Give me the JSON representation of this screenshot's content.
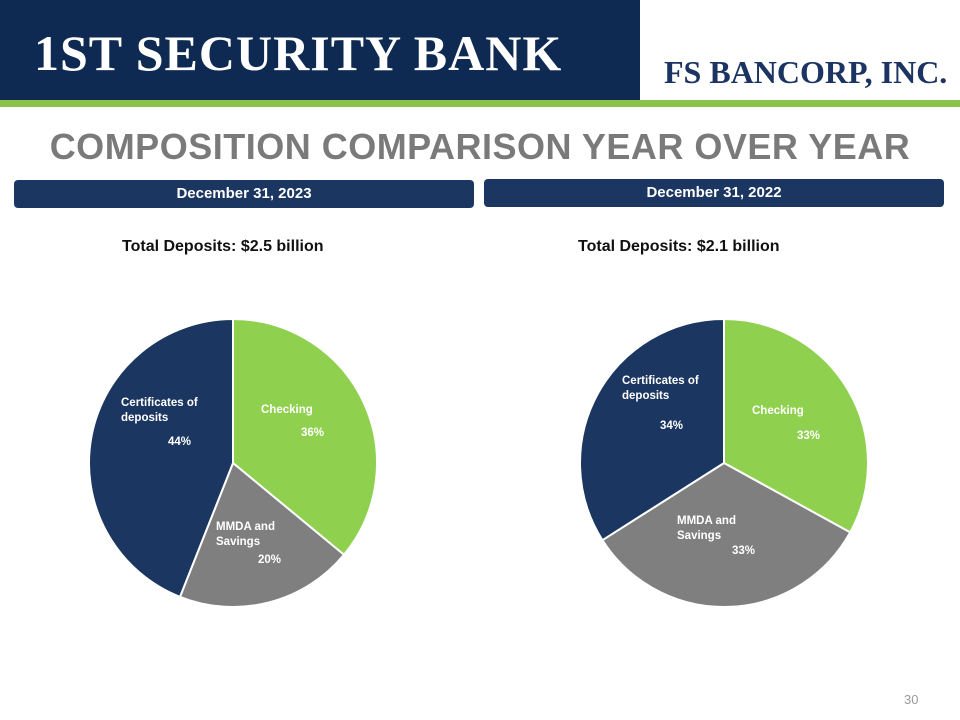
{
  "header": {
    "logo_left": "1ST SECURITY BANK",
    "logo_right": "FS BANCORP, INC."
  },
  "title": "COMPOSITION COMPARISON YEAR OVER YEAR",
  "page_number": "30",
  "colors": {
    "navy": "#1b3660",
    "green": "#8fd14f",
    "gray": "#7f7f7f",
    "title_gray": "#7a7a7a"
  },
  "chart_data": [
    {
      "type": "pie",
      "date": "December 31, 2023",
      "title": "Total Deposits: $2.5 billion",
      "slices": [
        {
          "label": "Checking",
          "value": 36,
          "value_label": "36%"
        },
        {
          "label": "MMDA and Savings",
          "value": 20,
          "value_label": "20%"
        },
        {
          "label": "Certificates of deposits",
          "value": 44,
          "value_label": "44%"
        }
      ]
    },
    {
      "type": "pie",
      "date": "December 31, 2022",
      "title": "Total Deposits: $2.1 billion",
      "slices": [
        {
          "label": "Checking",
          "value": 33,
          "value_label": "33%"
        },
        {
          "label": "MMDA and Savings",
          "value": 33,
          "value_label": "33%"
        },
        {
          "label": "Certificates of deposits",
          "value": 34,
          "value_label": "34%"
        }
      ]
    }
  ]
}
